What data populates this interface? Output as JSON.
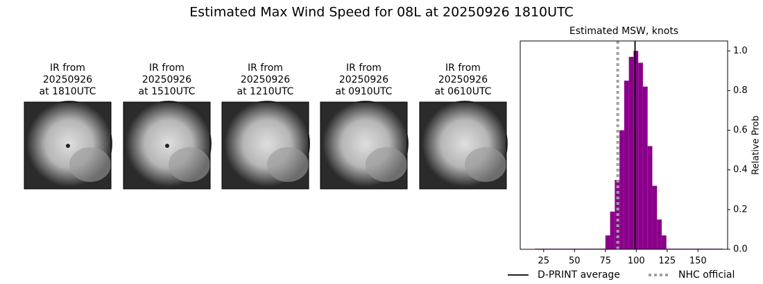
{
  "title": "Estimated Max Wind Speed for 08L at 20250926 1810UTC",
  "panels": [
    {
      "lines": [
        "IR from",
        "20250926",
        "at 1810UTC"
      ]
    },
    {
      "lines": [
        "IR from",
        "20250926",
        "at 1510UTC"
      ]
    },
    {
      "lines": [
        "IR from",
        "20250926",
        "at 1210UTC"
      ]
    },
    {
      "lines": [
        "IR from",
        "20250926",
        "at 0910UTC"
      ]
    },
    {
      "lines": [
        "IR from",
        "20250926",
        "at 0610UTC"
      ]
    }
  ],
  "chart_data": {
    "type": "histogram",
    "title": "Estimated MSW, knots",
    "ylabel": "Relative Prob",
    "color": "#8b008b",
    "bins": [
      18,
      21.8,
      25.6,
      29.4,
      33.2,
      37,
      40.8,
      44.6,
      48.4,
      52.2,
      56,
      59.8,
      63.6,
      67.4,
      71.2,
      75,
      78.8,
      82.6,
      86.4,
      90.2,
      94,
      97.8,
      101.6,
      105.4,
      109.2,
      113,
      116.8,
      120.6,
      124.4,
      128.2,
      132,
      135.8,
      139.6,
      143.4,
      147.2,
      151,
      154.8,
      158.6,
      162.4,
      166.2,
      170
    ],
    "values": [
      0.003,
      0.003,
      0.003,
      0.003,
      0.003,
      0.003,
      0.003,
      0.003,
      0.003,
      0.003,
      0.003,
      0.003,
      0.003,
      0.003,
      0.003,
      0.07,
      0.19,
      0.35,
      0.6,
      0.85,
      0.97,
      1.0,
      0.94,
      0.82,
      0.52,
      0.32,
      0.15,
      0.07,
      0.003,
      0.003,
      0.003,
      0.003,
      0.003,
      0.003,
      0.003,
      0.003,
      0.003,
      0.003,
      0.003,
      0.003
    ],
    "xlim": [
      6,
      174
    ],
    "ylim": [
      0,
      1.05
    ],
    "xticks": [
      25,
      50,
      75,
      100,
      125,
      150
    ],
    "yticks": [
      {
        "value": 0,
        "label": "0.0"
      },
      0.2,
      0.4,
      0.6,
      0.8,
      {
        "value": 1,
        "label": "1.0"
      }
    ],
    "lines": [
      {
        "name": "D-PRINT average",
        "value": 99,
        "color": "#000000",
        "style": "solid"
      },
      {
        "name": "NHC official",
        "value": 85,
        "color": "#a0a0a0",
        "style": "dotted"
      }
    ]
  }
}
